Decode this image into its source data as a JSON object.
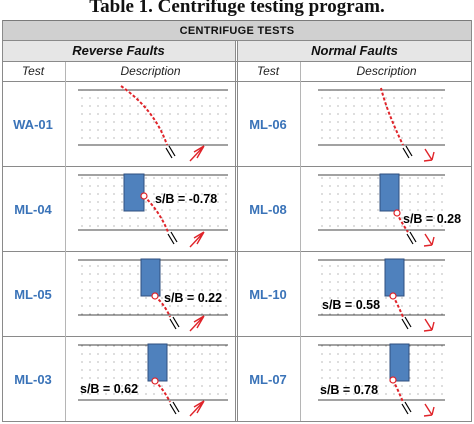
{
  "caption": "Table 1. Centrifuge testing program.",
  "header": {
    "title": "CENTRIFUGE TESTS",
    "groups": [
      "Reverse Faults",
      "Normal Faults"
    ],
    "columns": [
      "Test",
      "Description",
      "Test",
      "Description"
    ]
  },
  "rows": [
    {
      "reverse": {
        "test": "WA-01",
        "footing": false,
        "sb_label": ""
      },
      "normal": {
        "test": "ML-06",
        "footing": false,
        "sb_label": ""
      }
    },
    {
      "reverse": {
        "test": "ML-04",
        "footing": true,
        "sb_label": "s/B = -0.78"
      },
      "normal": {
        "test": "ML-08",
        "footing": true,
        "sb_label": "s/B = 0.28"
      }
    },
    {
      "reverse": {
        "test": "ML-05",
        "footing": true,
        "sb_label": "s/B = 0.22"
      },
      "normal": {
        "test": "ML-10",
        "footing": true,
        "sb_label": "s/B = 0.58"
      }
    },
    {
      "reverse": {
        "test": "ML-03",
        "footing": true,
        "sb_label": "s/B = 0.62"
      },
      "normal": {
        "test": "ML-07",
        "footing": true,
        "sb_label": "s/B = 0.78"
      }
    }
  ],
  "colors": {
    "test_label": "#3a73b8",
    "footing_fill": "#4f81bd",
    "footing_stroke": "#2f4f7f",
    "fault_trace": "#e0242a",
    "grid": "#8a8a8a",
    "header_bg": "#d0d0d0",
    "subheader_bg": "#e6e6e6"
  }
}
